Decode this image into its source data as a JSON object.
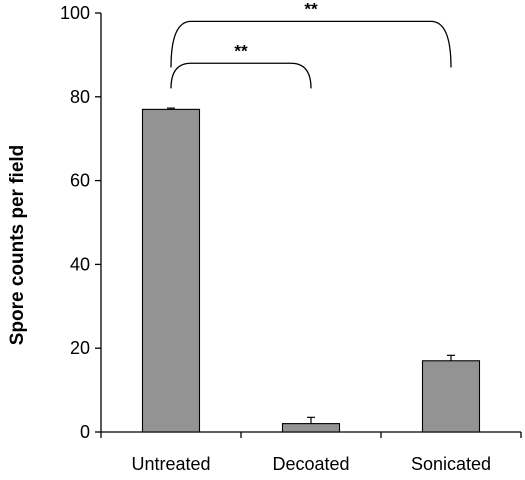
{
  "chart_data": {
    "type": "bar",
    "title": "",
    "xlabel": "",
    "ylabel": "Spore counts per field",
    "categories": [
      "Untreated",
      "Decoated",
      "Sonicated"
    ],
    "values": [
      77,
      2,
      17
    ],
    "errors": [
      0.3,
      1.5,
      1.3
    ],
    "ylim": [
      0,
      100
    ],
    "yticks": [
      0,
      20,
      40,
      60,
      80,
      100
    ],
    "grid": false,
    "legend": "none",
    "bar_color": "#939393",
    "annotations": [
      {
        "from": "Untreated",
        "to": "Decoated",
        "label": "**"
      },
      {
        "from": "Untreated",
        "to": "Sonicated",
        "label": "**"
      }
    ]
  }
}
